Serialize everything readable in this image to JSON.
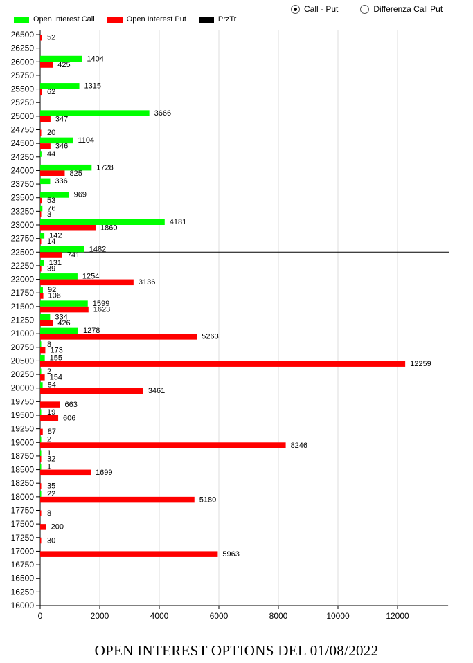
{
  "controls": {
    "radio_options": [
      {
        "label": "Call - Put",
        "checked": true
      },
      {
        "label": "Differenza Call Put",
        "checked": false
      }
    ]
  },
  "caption": "OPEN INTEREST OPTIONS DEL 01/08/2022",
  "chart_data": {
    "type": "bar",
    "orientation": "horizontal",
    "legend": [
      {
        "name": "Open Interest Call",
        "color": "#00ff00"
      },
      {
        "name": "Open Interest Put",
        "color": "#ff0000"
      },
      {
        "name": "PrzTr",
        "color": "#000000"
      }
    ],
    "legend_position": "top-left",
    "strike_ticks": [
      26500,
      26250,
      26000,
      25750,
      25500,
      25250,
      25000,
      24750,
      24500,
      24250,
      24000,
      23750,
      23500,
      23250,
      23000,
      22750,
      22500,
      22250,
      22000,
      21750,
      21500,
      21250,
      21000,
      20750,
      20500,
      20250,
      20000,
      19750,
      19500,
      19250,
      19000,
      18750,
      18500,
      18250,
      18000,
      17750,
      17500,
      17250,
      17000,
      16750,
      16500,
      16250,
      16000
    ],
    "x_ticks": [
      0,
      2000,
      4000,
      6000,
      8000,
      10000,
      12000
    ],
    "xlim": [
      0,
      13700
    ],
    "ylim": [
      16000,
      26500
    ],
    "grid": "vertical",
    "price_line": 22500,
    "call": [
      [
        26000,
        1404
      ],
      [
        25500,
        1315
      ],
      [
        25000,
        3666
      ],
      [
        24500,
        1104
      ],
      [
        24250,
        44
      ],
      [
        24000,
        1728
      ],
      [
        23750,
        336
      ],
      [
        23500,
        969
      ],
      [
        23250,
        76
      ],
      [
        23000,
        4181
      ],
      [
        22750,
        142
      ],
      [
        22500,
        1482
      ],
      [
        22250,
        131
      ],
      [
        22000,
        1254
      ],
      [
        21750,
        92
      ],
      [
        21500,
        1599
      ],
      [
        21250,
        334
      ],
      [
        21000,
        1278
      ],
      [
        20750,
        8
      ],
      [
        20500,
        155
      ],
      [
        20250,
        2
      ],
      [
        20000,
        84
      ],
      [
        19500,
        19
      ],
      [
        19000,
        2
      ],
      [
        18750,
        1
      ],
      [
        18500,
        1
      ],
      [
        18000,
        22
      ]
    ],
    "put": [
      [
        26500,
        52
      ],
      [
        26000,
        425
      ],
      [
        25500,
        62
      ],
      [
        25000,
        347
      ],
      [
        24750,
        20
      ],
      [
        24500,
        346
      ],
      [
        24000,
        825
      ],
      [
        23500,
        53
      ],
      [
        23250,
        3
      ],
      [
        23000,
        1860
      ],
      [
        22750,
        14
      ],
      [
        22500,
        741
      ],
      [
        22250,
        39
      ],
      [
        22000,
        3136
      ],
      [
        21750,
        106
      ],
      [
        21500,
        1623
      ],
      [
        21250,
        426
      ],
      [
        21000,
        5263
      ],
      [
        20750,
        173
      ],
      [
        20500,
        12259
      ],
      [
        20250,
        154
      ],
      [
        20000,
        3461
      ],
      [
        19750,
        663
      ],
      [
        19500,
        606
      ],
      [
        19250,
        87
      ],
      [
        19000,
        8246
      ],
      [
        18750,
        32
      ],
      [
        18500,
        1699
      ],
      [
        18250,
        35
      ],
      [
        18000,
        5180
      ],
      [
        17750,
        8
      ],
      [
        17500,
        200
      ],
      [
        17250,
        30
      ],
      [
        17000,
        5963
      ]
    ]
  }
}
